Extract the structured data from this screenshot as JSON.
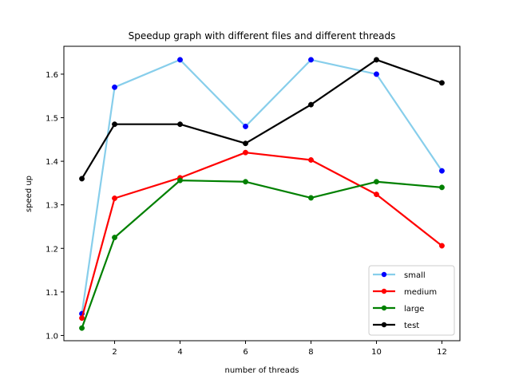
{
  "chart_data": {
    "type": "line",
    "title": "Speedup graph with different files and different threads",
    "xlabel": "number of threads",
    "ylabel": "speed up",
    "x": [
      1,
      2,
      4,
      6,
      8,
      10,
      12
    ],
    "xticks": [
      2,
      4,
      6,
      8,
      10,
      12
    ],
    "yticks": [
      1.0,
      1.1,
      1.2,
      1.3,
      1.4,
      1.5,
      1.6
    ],
    "xlim": [
      0.45,
      12.55
    ],
    "ylim": [
      0.988,
      1.664
    ],
    "grid": false,
    "legend_position": "lower-right",
    "series": [
      {
        "name": "small",
        "color": "#87ceeb",
        "marker_color": "#0000ff",
        "values": [
          1.05,
          1.57,
          1.633,
          1.48,
          1.633,
          1.6,
          1.378
        ]
      },
      {
        "name": "medium",
        "color": "#ff0000",
        "marker_color": "#ff0000",
        "values": [
          1.04,
          1.315,
          1.362,
          1.42,
          1.403,
          1.324,
          1.206
        ]
      },
      {
        "name": "large",
        "color": "#008000",
        "marker_color": "#008000",
        "values": [
          1.017,
          1.225,
          1.356,
          1.353,
          1.316,
          1.353,
          1.34
        ]
      },
      {
        "name": "test",
        "color": "#000000",
        "marker_color": "#000000",
        "values": [
          1.36,
          1.485,
          1.485,
          1.441,
          1.53,
          1.633,
          1.58
        ]
      }
    ]
  }
}
